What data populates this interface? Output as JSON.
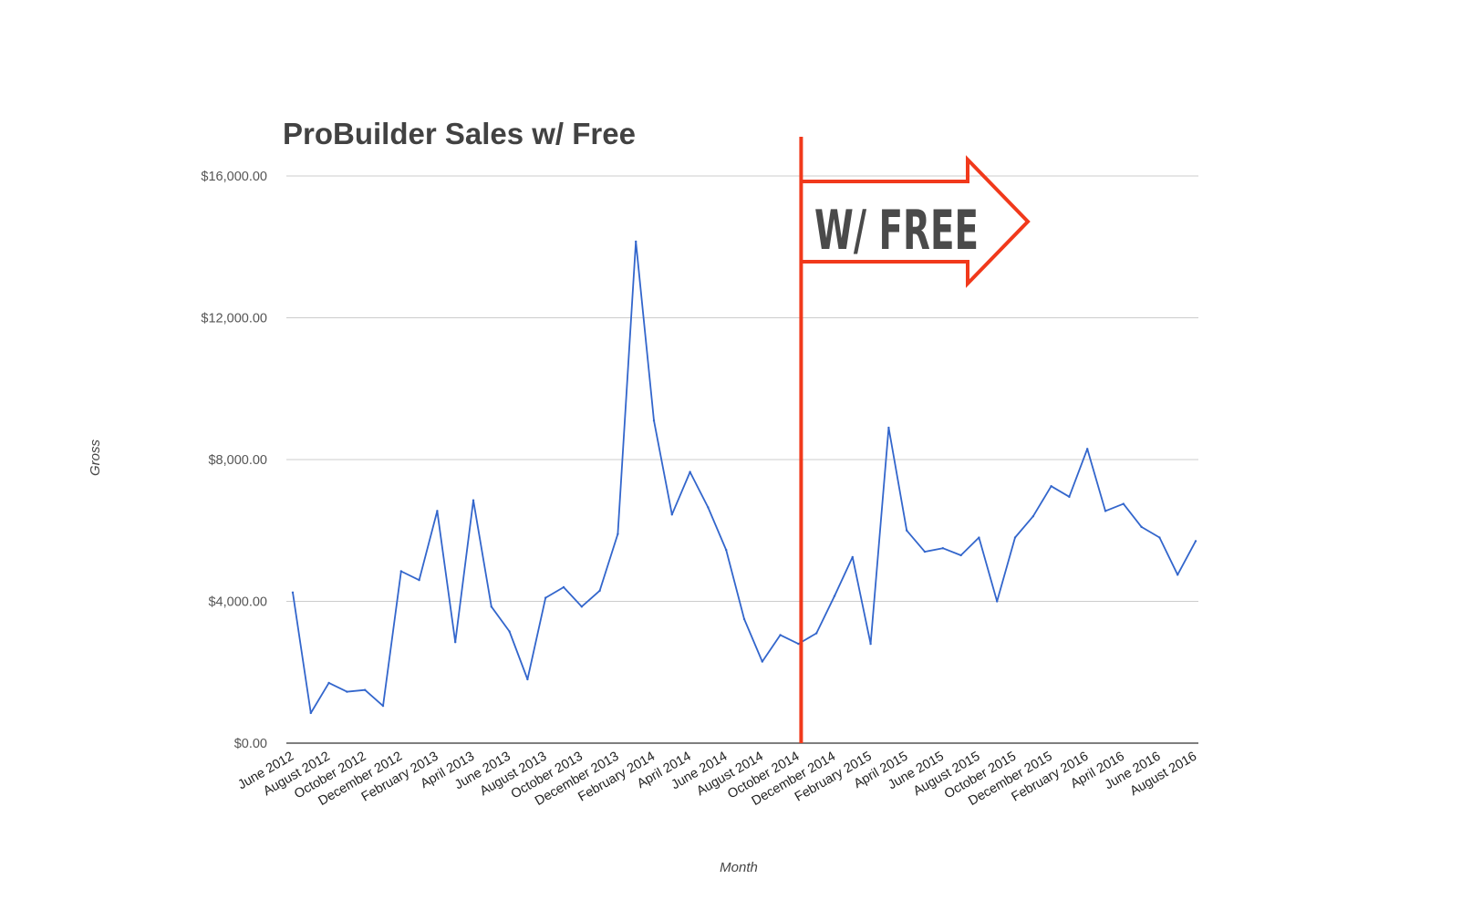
{
  "chart_data": {
    "type": "line",
    "title": "ProBuilder Sales w/ Free",
    "xlabel": "Month",
    "ylabel": "Gross",
    "ylim": [
      0,
      16000
    ],
    "yticks": [
      0,
      4000,
      8000,
      12000,
      16000
    ],
    "ytick_labels": [
      "$0.00",
      "$4,000.00",
      "$8,000.00",
      "$12,000.00",
      "$16,000.00"
    ],
    "grid": true,
    "legend": "none",
    "x": [
      "June 2012",
      "July 2012",
      "August 2012",
      "September 2012",
      "October 2012",
      "November 2012",
      "December 2012",
      "January 2013",
      "February 2013",
      "March 2013",
      "April 2013",
      "May 2013",
      "June 2013",
      "July 2013",
      "August 2013",
      "September 2013",
      "October 2013",
      "November 2013",
      "December 2013",
      "January 2014",
      "February 2014",
      "March 2014",
      "April 2014",
      "May 2014",
      "June 2014",
      "July 2014",
      "August 2014",
      "September 2014",
      "October 2014",
      "November 2014",
      "December 2014",
      "January 2015",
      "February 2015",
      "March 2015",
      "April 2015",
      "May 2015",
      "June 2015",
      "July 2015",
      "August 2015",
      "September 2015",
      "October 2015",
      "November 2015",
      "December 2015",
      "January 2016",
      "February 2016",
      "March 2016",
      "April 2016",
      "May 2016",
      "June 2016",
      "July 2016",
      "August 2016"
    ],
    "x_tick_labels": [
      "June 2012",
      "August 2012",
      "October 2012",
      "December 2012",
      "February 2013",
      "April 2013",
      "June 2013",
      "August 2013",
      "October 2013",
      "December 2013",
      "February 2014",
      "April 2014",
      "June 2014",
      "August 2014",
      "October 2014",
      "December 2014",
      "February 2015",
      "April 2015",
      "June 2015",
      "August 2015",
      "October 2015",
      "December 2015",
      "February 2016",
      "April 2016",
      "June 2016",
      "August 2016"
    ],
    "series": [
      {
        "values": [
          4250,
          850,
          1700,
          1450,
          1500,
          1050,
          4850,
          4600,
          6550,
          2850,
          6850,
          3850,
          3150,
          1800,
          4100,
          4400,
          3850,
          4300,
          5900,
          14150,
          9100,
          6450,
          7650,
          6650,
          5450,
          3500,
          2300,
          3050,
          2800,
          3100,
          4150,
          5250,
          2800,
          8900,
          6000,
          5400,
          5500,
          5300,
          5800,
          4000,
          5800,
          6400,
          7250,
          6950,
          8300,
          6550,
          6750,
          6100,
          5800,
          4750,
          5700
        ],
        "color": "#3366cc"
      }
    ],
    "annotation": {
      "text": "W/ FREE",
      "marker_x": "October 2014",
      "color": "#f1391b"
    }
  }
}
